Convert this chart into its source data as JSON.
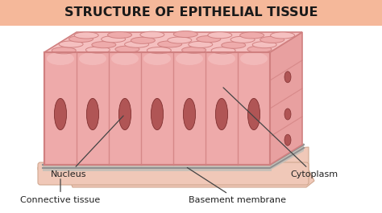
{
  "title": "STRUCTURE OF EPITHELIAL TISSUE",
  "title_fontsize": 11.5,
  "title_bg_top": "#f5b89a",
  "title_bg_bot": "#f0a080",
  "title_color": "#1a1a1a",
  "bg_color": "#ffffff",
  "cell_light": "#f5c0c0",
  "cell_mid": "#eeaaaa",
  "cell_dark": "#e09090",
  "cell_edge": "#d08080",
  "cell_side": "#e8a0a0",
  "nuc_fill": "#b05555",
  "nuc_edge": "#803030",
  "bm_fill": "#c8c0b8",
  "bm_edge": "#a0a090",
  "conn_fill": "#f0c8b8",
  "conn_edge": "#d0a890",
  "label_fs": 8.0,
  "labels": [
    "Nucleus",
    "Cytoplasm",
    "Connective tissue",
    "Basement membrane"
  ]
}
